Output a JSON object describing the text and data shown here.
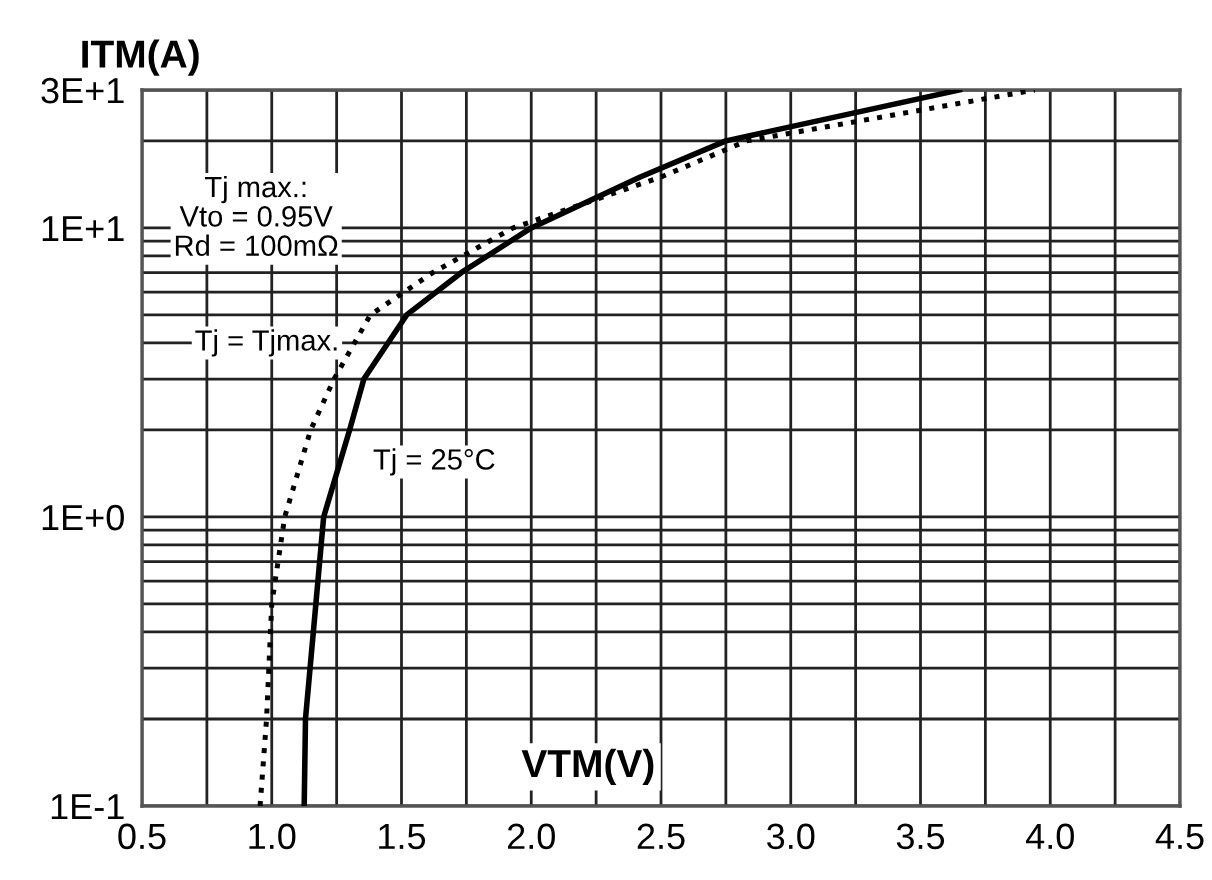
{
  "chart_data": {
    "type": "line",
    "xlabel": "VTM(V)",
    "ylabel": "ITM(A)",
    "series": [
      {
        "name": "Tj = Tjmax.",
        "color": "#000000",
        "line_style": "dotted",
        "x": [
          0.955,
          0.98,
          1.0,
          1.05,
          1.15,
          1.24,
          1.38,
          1.62,
          1.93,
          2.5,
          2.83,
          3.94
        ],
        "values": [
          0.1,
          0.2,
          0.5,
          1,
          2,
          3,
          5,
          7,
          10,
          15,
          20,
          30
        ]
      },
      {
        "name": "Tj = 25°C",
        "color": "#000000",
        "line_style": "solid",
        "x": [
          1.125,
          1.13,
          1.17,
          1.2,
          1.3,
          1.355,
          1.52,
          1.73,
          2.0,
          2.42,
          2.75,
          3.65
        ],
        "values": [
          0.1,
          0.2,
          0.5,
          1,
          2,
          3,
          5,
          7,
          10,
          15,
          20,
          30
        ]
      }
    ],
    "annotations": [
      "Tj max.:\nVto = 0.95V\nRd = 100mΩ"
    ],
    "xlim": [
      0.5,
      4.5
    ],
    "xticks": [
      0.5,
      {
        "value": 1,
        "label": "1.0"
      },
      1.5,
      {
        "value": 2,
        "label": "2.0"
      },
      2.5,
      {
        "value": 3,
        "label": "3.0"
      },
      3.5,
      {
        "value": 4,
        "label": "4.0"
      },
      4.5
    ],
    "ylim": [
      0.1,
      30
    ],
    "log": "y",
    "yticks": [
      {
        "value": 0.1,
        "label": "1E-1"
      },
      {
        "value": 1,
        "label": "1E+0"
      },
      {
        "value": 10,
        "label": "1E+1"
      },
      {
        "value": 30,
        "label": "3E+1"
      }
    ],
    "grid": true,
    "marker": "none",
    "legend": false
  }
}
